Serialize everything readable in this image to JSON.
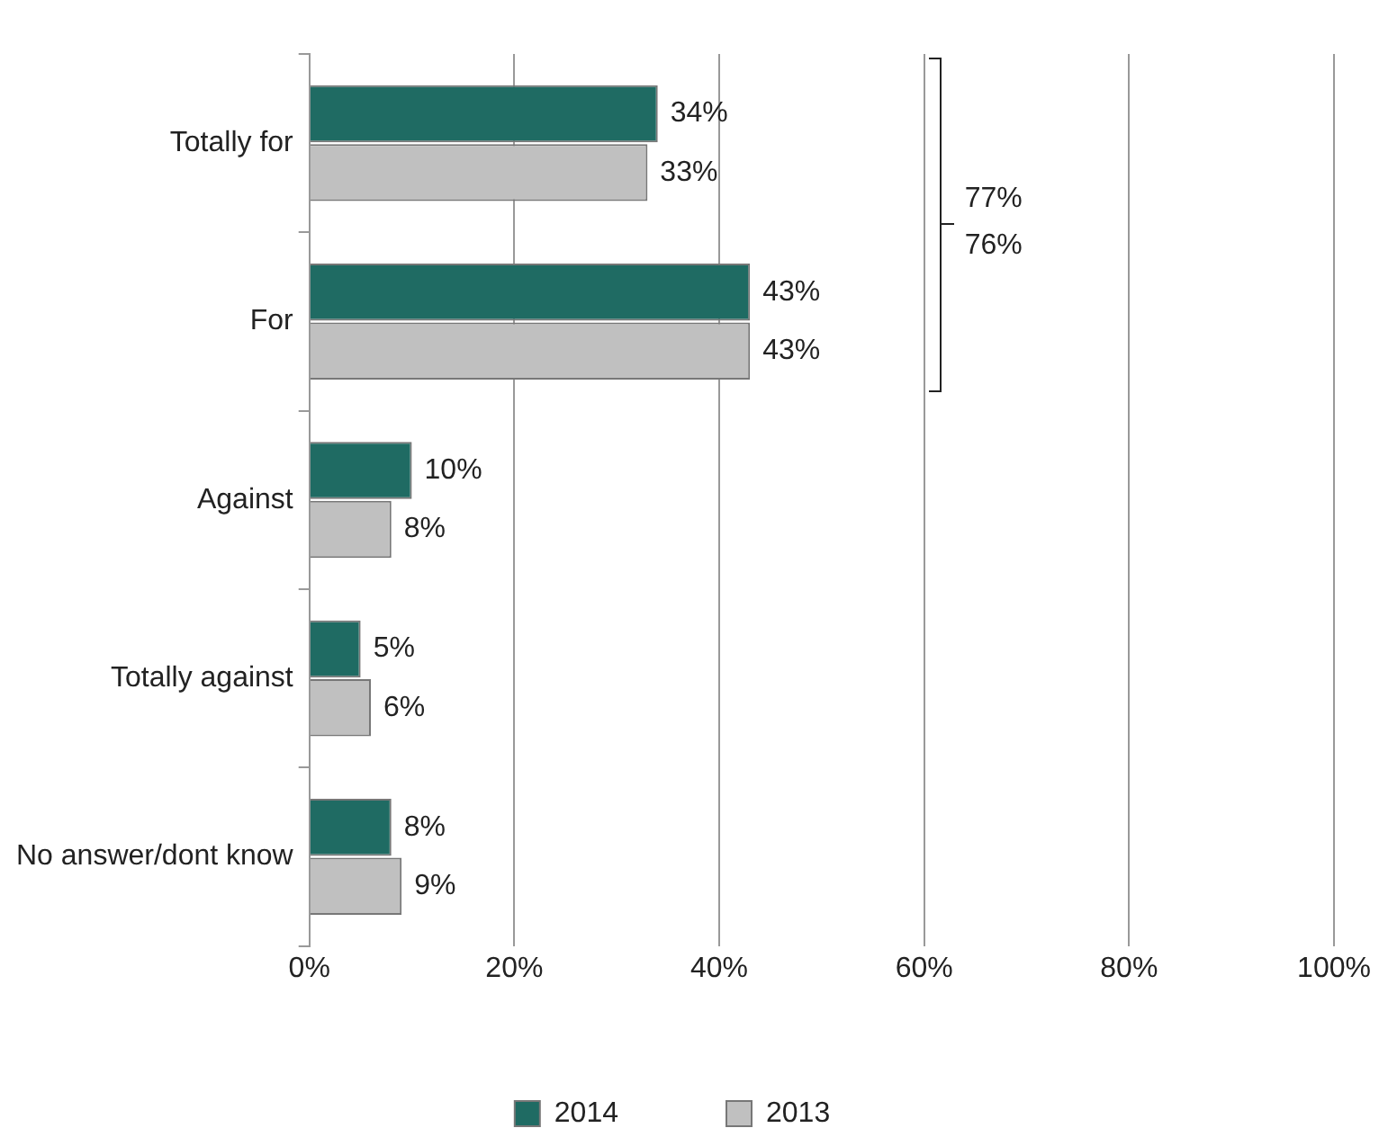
{
  "chart_data": {
    "type": "bar",
    "orientation": "horizontal",
    "categories": [
      "Totally for",
      "For",
      "Against",
      "Totally against",
      "No answer/dont know"
    ],
    "series": [
      {
        "name": "2014",
        "color": "#1f6b63",
        "values": [
          34,
          43,
          10,
          5,
          8
        ],
        "value_labels": [
          "34%",
          "43%",
          "10%",
          "5%",
          "8%"
        ]
      },
      {
        "name": "2013",
        "color": "#c0c0c0",
        "values": [
          33,
          43,
          8,
          6,
          9
        ],
        "value_labels": [
          "33%",
          "43%",
          "8%",
          "6%",
          "9%"
        ]
      }
    ],
    "xlim": [
      0,
      100
    ],
    "xticks": [
      {
        "value": 0,
        "label": "0%"
      },
      {
        "value": 20,
        "label": "20%"
      },
      {
        "value": 40,
        "label": "40%"
      },
      {
        "value": 60,
        "label": "60%"
      },
      {
        "value": 80,
        "label": "80%"
      },
      {
        "value": 100,
        "label": "100%"
      }
    ],
    "grid": "x",
    "legend": "bottom",
    "annotations": [
      "77%",
      "76%"
    ]
  }
}
